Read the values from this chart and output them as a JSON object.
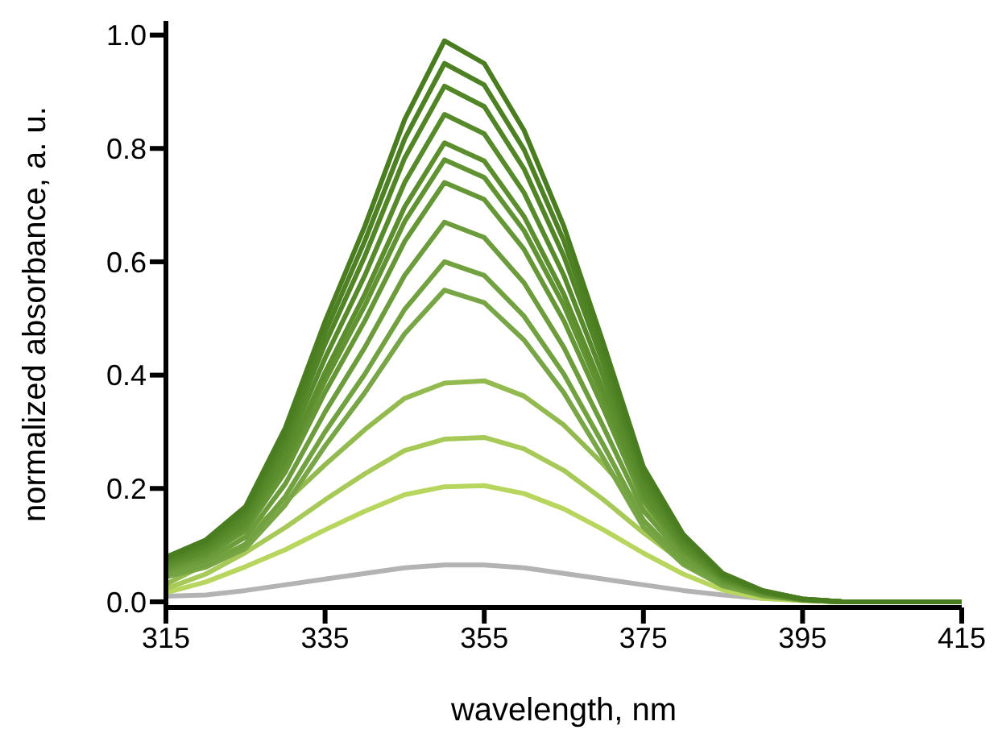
{
  "chart_data": {
    "type": "line",
    "xlabel": "wavelength, nm",
    "ylabel": "normalized absorbance, a. u.",
    "x": [
      315,
      320,
      325,
      330,
      335,
      340,
      345,
      350,
      355,
      360,
      365,
      370,
      375,
      380,
      385,
      390,
      395,
      400,
      405,
      410,
      415
    ],
    "xlim": [
      315,
      415
    ],
    "xticks": [
      315,
      335,
      355,
      375,
      395,
      415
    ],
    "ylim": [
      -0.01,
      1.025
    ],
    "yticks": [
      {
        "value": 0,
        "label": "0.0"
      },
      0.2,
      0.4,
      0.6,
      0.8,
      {
        "value": 1,
        "label": "1.0"
      }
    ],
    "grid": false,
    "marker": "none",
    "line_style": "solid",
    "series": [
      {
        "color": "#b3b3b3",
        "values": [
          0.01,
          0.012,
          0.02,
          0.03,
          0.04,
          0.05,
          0.06,
          0.065,
          0.065,
          0.06,
          0.05,
          0.04,
          0.03,
          0.02,
          0.012,
          0.006,
          0.003,
          0,
          0,
          0,
          0
        ]
      },
      {
        "color": "#b8d65e",
        "values": [
          0.016,
          0.035,
          0.062,
          0.092,
          0.127,
          0.16,
          0.189,
          0.203,
          0.205,
          0.191,
          0.164,
          0.127,
          0.086,
          0.049,
          0.021,
          0.006,
          0.002,
          0,
          0,
          null,
          null
        ]
      },
      {
        "color": "#a6c957",
        "values": [
          0.023,
          0.049,
          0.087,
          0.131,
          0.18,
          0.226,
          0.267,
          0.287,
          0.29,
          0.27,
          0.232,
          0.18,
          0.122,
          0.07,
          0.029,
          0.009,
          0.003,
          0,
          0,
          null,
          null
        ]
      },
      {
        "color": "#93ba4f",
        "values": [
          0.031,
          0.066,
          0.117,
          0.176,
          0.242,
          0.304,
          0.359,
          0.386,
          0.39,
          0.363,
          0.312,
          0.242,
          0.164,
          0.094,
          0.039,
          0.012,
          0.004,
          0,
          0,
          null,
          null
        ]
      },
      {
        "color": "#78a545",
        "values": [
          0.044,
          0.061,
          0.094,
          0.171,
          0.275,
          0.369,
          0.473,
          0.55,
          0.528,
          0.462,
          0.369,
          0.253,
          0.132,
          0.066,
          0.028,
          0.011,
          0.003,
          0,
          0,
          0,
          0
        ]
      },
      {
        "color": "#72a140",
        "values": [
          0.048,
          0.066,
          0.102,
          0.186,
          0.3,
          0.402,
          0.516,
          0.6,
          0.576,
          0.504,
          0.402,
          0.276,
          0.144,
          0.072,
          0.03,
          0.012,
          0.003,
          0,
          0,
          0,
          0
        ]
      },
      {
        "color": "#6c9c3b",
        "values": [
          0.054,
          0.074,
          0.114,
          0.208,
          0.335,
          0.449,
          0.576,
          0.67,
          0.643,
          0.563,
          0.449,
          0.308,
          0.161,
          0.08,
          0.034,
          0.013,
          0.003,
          0,
          0,
          0,
          0
        ]
      },
      {
        "color": "#669736",
        "values": [
          0.059,
          0.081,
          0.126,
          0.229,
          0.37,
          0.496,
          0.636,
          0.74,
          0.71,
          0.622,
          0.496,
          0.34,
          0.178,
          0.089,
          0.037,
          0.015,
          0.004,
          0,
          0,
          0,
          0
        ]
      },
      {
        "color": "#619332",
        "values": [
          0.062,
          0.086,
          0.133,
          0.242,
          0.39,
          0.523,
          0.671,
          0.78,
          0.749,
          0.655,
          0.523,
          0.359,
          0.187,
          0.094,
          0.039,
          0.016,
          0.004,
          0,
          0,
          0,
          0
        ]
      },
      {
        "color": "#5c8e2e",
        "values": [
          0.065,
          0.089,
          0.138,
          0.251,
          0.405,
          0.543,
          0.697,
          0.81,
          0.778,
          0.68,
          0.543,
          0.373,
          0.194,
          0.097,
          0.041,
          0.016,
          0.004,
          0,
          0,
          0,
          0
        ]
      },
      {
        "color": "#578a2a",
        "values": [
          0.069,
          0.095,
          0.146,
          0.267,
          0.43,
          0.576,
          0.74,
          0.86,
          0.826,
          0.722,
          0.576,
          0.396,
          0.206,
          0.103,
          0.043,
          0.017,
          0.004,
          0,
          0,
          0,
          0
        ]
      },
      {
        "color": "#528526",
        "values": [
          0.073,
          0.1,
          0.155,
          0.282,
          0.455,
          0.61,
          0.783,
          0.91,
          0.874,
          0.764,
          0.61,
          0.419,
          0.218,
          0.109,
          0.046,
          0.018,
          0.005,
          0,
          0,
          0,
          0
        ]
      },
      {
        "color": "#4e8123",
        "values": [
          0.076,
          0.105,
          0.162,
          0.295,
          0.475,
          0.637,
          0.817,
          0.95,
          0.912,
          0.798,
          0.637,
          0.437,
          0.228,
          0.114,
          0.048,
          0.019,
          0.005,
          0,
          0,
          0,
          0
        ]
      },
      {
        "color": "#4a7d20",
        "values": [
          0.079,
          0.109,
          0.168,
          0.307,
          0.495,
          0.663,
          0.851,
          0.99,
          0.95,
          0.832,
          0.663,
          0.455,
          0.238,
          0.119,
          0.05,
          0.02,
          0.005,
          0,
          0,
          0,
          0
        ]
      }
    ]
  }
}
